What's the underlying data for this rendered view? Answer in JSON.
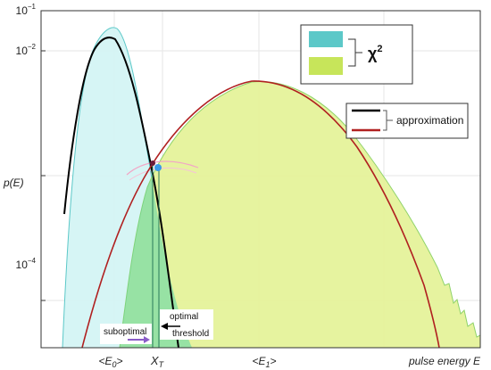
{
  "chart_data": {
    "type": "area",
    "y_scale": "log",
    "ylim": [
      8e-06,
      0.1
    ],
    "ylabel": "p(E)",
    "xlabel": "pulse energy E",
    "y_ticks": [
      {
        "value": 0.1,
        "base": "10",
        "exp": "−1"
      },
      {
        "value": 0.01,
        "base": "10",
        "exp": "−2"
      },
      {
        "value": 0.0001,
        "base": "10",
        "exp": "−4"
      }
    ],
    "x_tick_labels": [
      {
        "key": "e0",
        "pre": "<E",
        "sub": "0",
        "post": ">"
      },
      {
        "key": "xt",
        "pre": "X",
        "sub": "T",
        "post": ""
      },
      {
        "key": "e1",
        "pre": "<E",
        "sub": "1",
        "post": ">"
      }
    ],
    "grid": true,
    "series": [
      {
        "name": "χ² (E₀)",
        "role": "chi2-low",
        "color": "#5cc8c8",
        "fill": "#d4f4f4"
      },
      {
        "name": "χ² (E₁)",
        "role": "chi2-high",
        "color": "#c7e55a",
        "fill": "#e5f29a"
      },
      {
        "name": "approximation (E₀)",
        "role": "approx-low",
        "color": "#000000"
      },
      {
        "name": "approximation (E₁)",
        "role": "approx-high",
        "color": "#b02020"
      }
    ],
    "legend": {
      "chi2_label": "χ",
      "chi2_sup": "2",
      "approx_label": "approximation"
    },
    "annotations": {
      "optimal_line1": "optimal",
      "optimal_line2": "threshold",
      "suboptimal": "suboptimal"
    },
    "colors": {
      "cyan": "#5cc8c8",
      "yellow_green": "#c7e55a",
      "overlap": "#58d3a8",
      "approx_dark": "#000000",
      "approx_red": "#b02020",
      "suboptimal_arrow": "#8a5cc8",
      "point": "#3a9ae8"
    }
  }
}
